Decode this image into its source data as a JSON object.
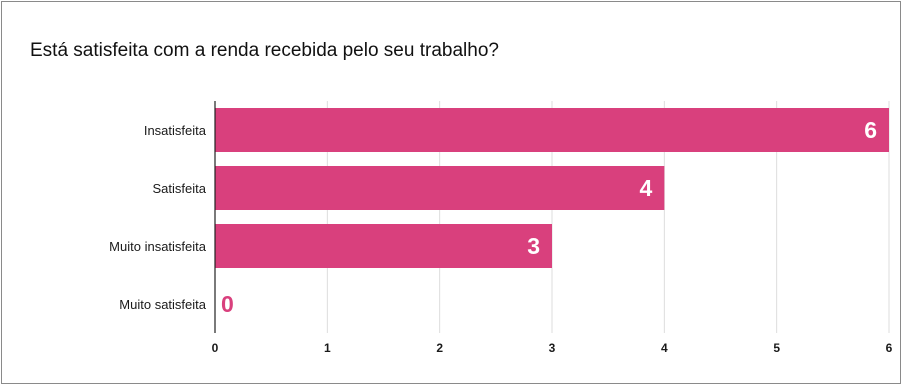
{
  "chart_data": {
    "type": "bar",
    "orientation": "horizontal",
    "title": "Está satisfeita com a renda recebida pelo seu trabalho?",
    "categories": [
      "Insatisfeita",
      "Satisfeita",
      "Muito insatisfeita",
      "Muito satisfeita"
    ],
    "values": [
      6,
      4,
      3,
      0
    ],
    "data_labels": [
      "6",
      "4",
      "3",
      "0"
    ],
    "xlim": [
      0,
      6
    ],
    "x_ticks": [
      "0",
      "1",
      "2",
      "3",
      "4",
      "5",
      "6"
    ],
    "grid": "vertical",
    "legend": "none",
    "colors": {
      "bar": "#d9407d",
      "label_inside": "#ffffff",
      "label_outside": "#d9407d",
      "grid": "#dddddd",
      "axis": "#222222"
    }
  }
}
